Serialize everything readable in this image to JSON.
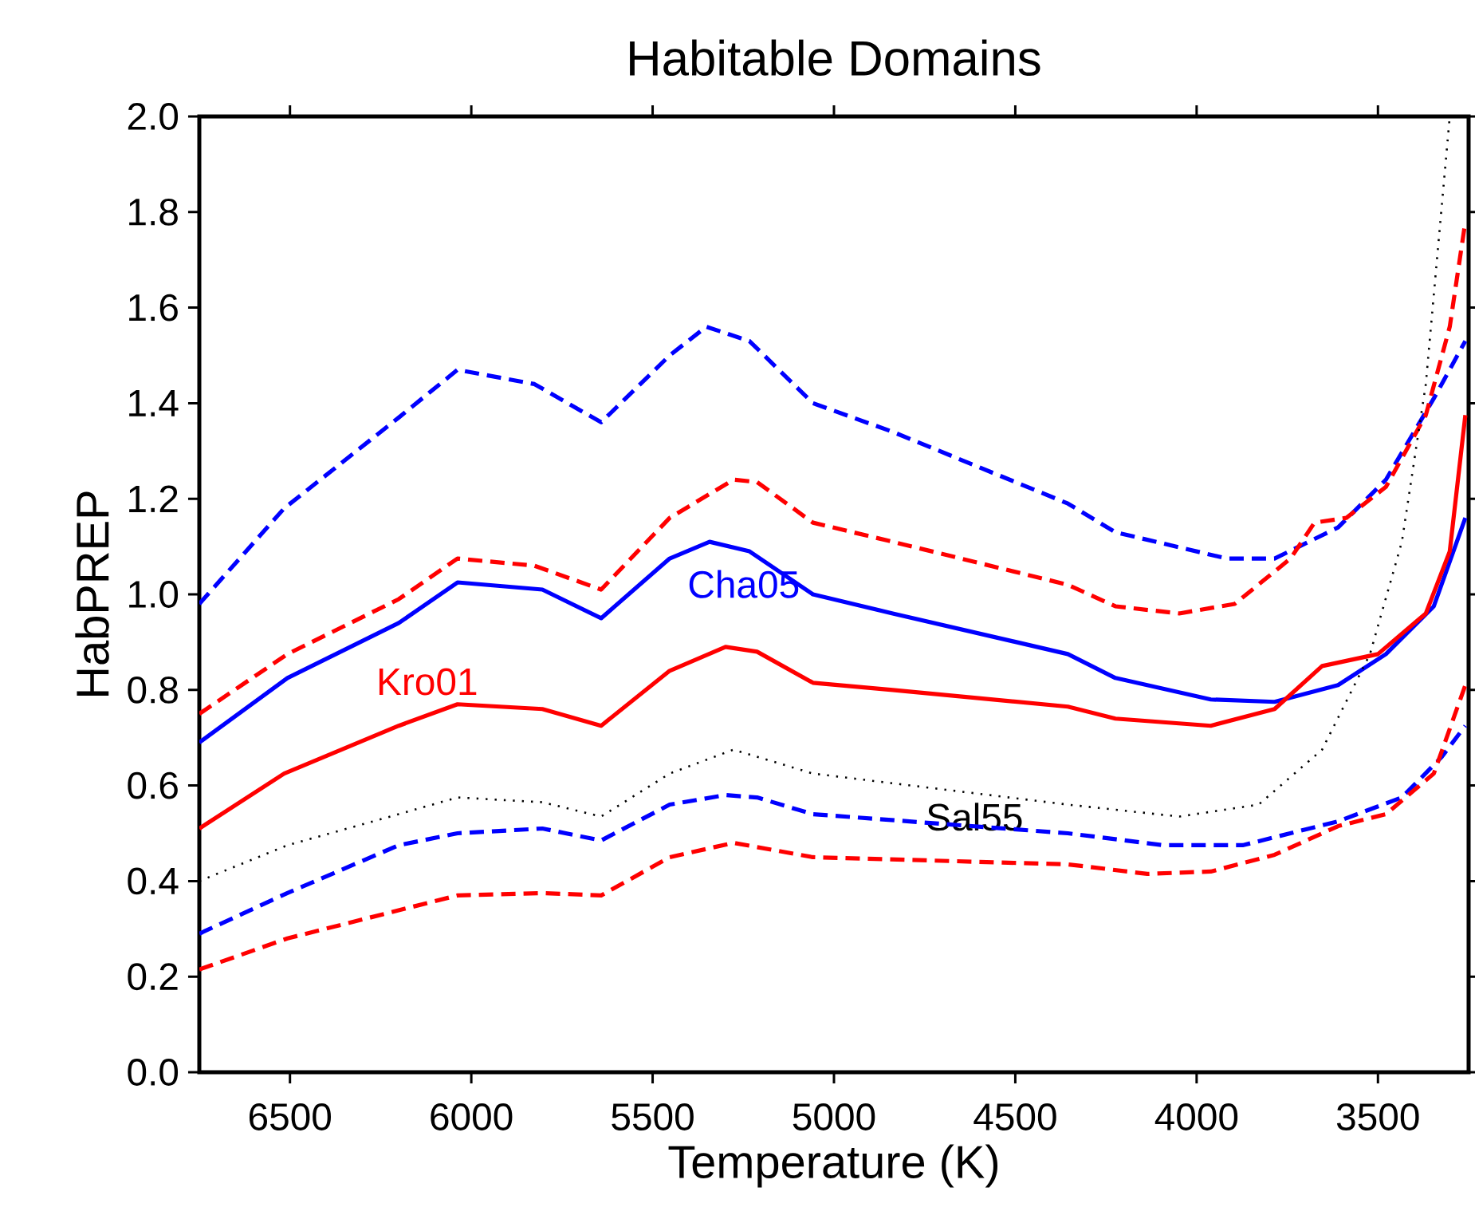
{
  "chart_data": {
    "type": "line",
    "title": "Habitable Domains",
    "xlabel": "Temperature (K)",
    "ylabel": "HabPREP",
    "xlim": [
      6750,
      3250
    ],
    "ylim": [
      0,
      2.0
    ],
    "xticks": [
      6500,
      6000,
      5500,
      5000,
      4500,
      4000,
      3500
    ],
    "yticks": [
      {
        "value": 0,
        "label": "0.0"
      },
      {
        "value": 0.2,
        "label": "0.2"
      },
      {
        "value": 0.4,
        "label": "0.4"
      },
      {
        "value": 0.6,
        "label": "0.6"
      },
      {
        "value": 0.8,
        "label": "0.8"
      },
      {
        "value": 1.0,
        "label": "1.0"
      },
      {
        "value": 1.2,
        "label": "1.2"
      },
      {
        "value": 1.4,
        "label": "1.4"
      },
      {
        "value": 1.6,
        "label": "1.6"
      },
      {
        "value": 1.8,
        "label": "1.8"
      },
      {
        "value": 2.0,
        "label": "2.0"
      }
    ],
    "marker": "none",
    "series": [
      {
        "color": "#0000ff",
        "line_style": "dashed",
        "x": [
          6750,
          6516,
          6200,
          6038,
          5826,
          5642,
          5453,
          5352,
          5233,
          5058,
          4838,
          4355,
          4224,
          3917,
          3785,
          3610,
          3478,
          3346,
          3259
        ],
        "values": [
          0.98,
          1.18,
          1.37,
          1.47,
          1.44,
          1.36,
          1.5,
          1.56,
          1.53,
          1.4,
          1.34,
          1.19,
          1.13,
          1.075,
          1.075,
          1.14,
          1.24,
          1.41,
          1.53
        ]
      },
      {
        "color": "#ff0000",
        "line_style": "dashed",
        "x": [
          6750,
          6507,
          6200,
          6038,
          5826,
          5642,
          5453,
          5277,
          5212,
          5058,
          4838,
          4355,
          4224,
          4048,
          3895,
          3741,
          3675,
          3587,
          3478,
          3368,
          3302,
          3259
        ],
        "values": [
          0.75,
          0.875,
          0.99,
          1.075,
          1.06,
          1.01,
          1.16,
          1.24,
          1.235,
          1.15,
          1.11,
          1.02,
          0.975,
          0.96,
          0.98,
          1.075,
          1.15,
          1.16,
          1.225,
          1.375,
          1.56,
          1.78
        ]
      },
      {
        "name": "Cha05",
        "color": "#0000ff",
        "line_style": "solid",
        "x": [
          6750,
          6507,
          6200,
          6038,
          5804,
          5642,
          5453,
          5343,
          5233,
          5058,
          4838,
          4355,
          4224,
          3961,
          3785,
          3610,
          3478,
          3346,
          3259
        ],
        "values": [
          0.69,
          0.825,
          0.94,
          1.025,
          1.01,
          0.95,
          1.075,
          1.11,
          1.09,
          1.0,
          0.96,
          0.875,
          0.825,
          0.78,
          0.775,
          0.81,
          0.875,
          0.975,
          1.16
        ]
      },
      {
        "name": "Kro01",
        "color": "#ff0000",
        "line_style": "solid",
        "x": [
          6750,
          6516,
          6200,
          6038,
          5804,
          5642,
          5453,
          5299,
          5212,
          5058,
          4838,
          4355,
          4224,
          3961,
          3785,
          3654,
          3500,
          3368,
          3302,
          3259
        ],
        "values": [
          0.51,
          0.625,
          0.725,
          0.77,
          0.76,
          0.725,
          0.84,
          0.89,
          0.88,
          0.815,
          0.8,
          0.765,
          0.74,
          0.725,
          0.76,
          0.85,
          0.875,
          0.96,
          1.09,
          1.375
        ]
      },
      {
        "name": "Sal55",
        "color": "#000000",
        "line_style": "dotted",
        "x": [
          6750,
          6507,
          6200,
          6038,
          5804,
          5642,
          5453,
          5277,
          5058,
          4355,
          4048,
          3829,
          3654,
          3522,
          3434,
          3368,
          3302
        ],
        "values": [
          0.4,
          0.475,
          0.54,
          0.575,
          0.565,
          0.535,
          0.625,
          0.675,
          0.625,
          0.56,
          0.535,
          0.56,
          0.675,
          0.875,
          1.11,
          1.44,
          2.0
        ]
      },
      {
        "color": "#0000ff",
        "line_style": "dashed",
        "x": [
          6750,
          6507,
          6200,
          6038,
          5804,
          5642,
          5453,
          5299,
          5212,
          5058,
          4355,
          4092,
          3873,
          3610,
          3434,
          3324,
          3259
        ],
        "values": [
          0.29,
          0.375,
          0.475,
          0.5,
          0.51,
          0.485,
          0.56,
          0.58,
          0.575,
          0.54,
          0.5,
          0.475,
          0.475,
          0.525,
          0.575,
          0.66,
          0.725
        ]
      },
      {
        "color": "#ff0000",
        "line_style": "dashed",
        "x": [
          6750,
          6507,
          6038,
          5804,
          5642,
          5453,
          5277,
          5058,
          4355,
          4136,
          3961,
          3785,
          3610,
          3478,
          3346,
          3259
        ],
        "values": [
          0.215,
          0.28,
          0.37,
          0.375,
          0.37,
          0.45,
          0.48,
          0.45,
          0.435,
          0.415,
          0.42,
          0.455,
          0.515,
          0.54,
          0.625,
          0.81
        ]
      }
    ]
  }
}
